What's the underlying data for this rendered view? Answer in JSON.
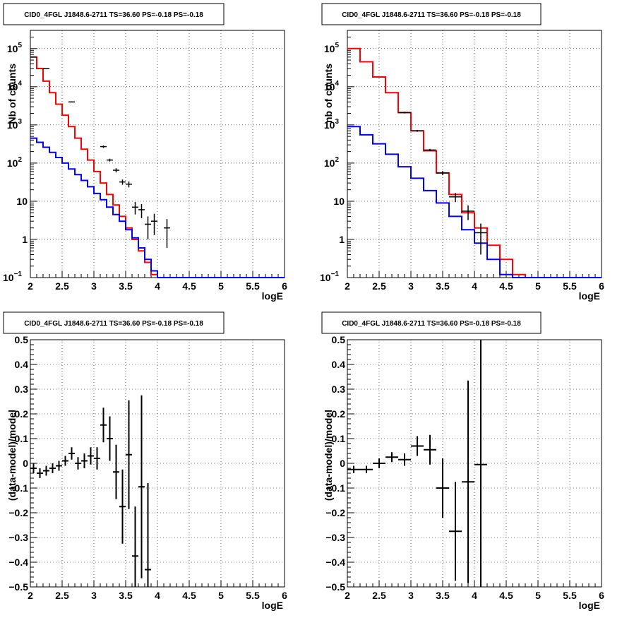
{
  "chart_data": [
    {
      "type": "histogram",
      "title": "CID0_4FGL J1848.6-2711 TS=36.60 PS=-0.18 PS=-0.18",
      "xlabel": "logE",
      "ylabel": "Nb of counts",
      "xlim": [
        2,
        6
      ],
      "ylim": [
        0.1,
        300000
      ],
      "yscale": "log",
      "grid": true,
      "x_ticks": [
        "2",
        "2.5",
        "3",
        "3.5",
        "4",
        "4.5",
        "5",
        "5.5",
        "6"
      ],
      "y_ticks": [
        {
          "value": 0.1,
          "mantissa": "10",
          "exp": "−1"
        },
        {
          "value": 1,
          "mantissa": "1",
          "exp": ""
        },
        {
          "value": 10,
          "mantissa": "10",
          "exp": ""
        },
        {
          "value": 100,
          "mantissa": "10",
          "exp": "2"
        },
        {
          "value": 1000,
          "mantissa": "10",
          "exp": "3"
        },
        {
          "value": 10000,
          "mantissa": "10",
          "exp": "4"
        },
        {
          "value": 100000,
          "mantissa": "10",
          "exp": "5"
        }
      ],
      "bin_width": 0.1,
      "series": [
        {
          "kind": "step",
          "color": "#ff0000",
          "edges_start": 2.0,
          "values": [
            60000,
            30000,
            14000,
            7000,
            3500,
            1800,
            900,
            450,
            230,
            120,
            60,
            30,
            15,
            8,
            4,
            2,
            1,
            0.5,
            0.25,
            0.12,
            0.1,
            0.1,
            0.1,
            0.1,
            0.1,
            0.1,
            0.1,
            0.1,
            0.1,
            0.1,
            0.1,
            0.1,
            0.1,
            0.1,
            0.1,
            0.1,
            0.1,
            0.1,
            0.1,
            0.1
          ]
        },
        {
          "kind": "step",
          "color": "#0000ff",
          "edges_start": 2.0,
          "values": [
            450,
            350,
            260,
            190,
            140,
            100,
            70,
            50,
            35,
            24,
            16,
            11,
            7,
            4.5,
            3,
            1.8,
            1.1,
            0.6,
            0.3,
            0.15,
            0.1,
            0.1,
            0.1,
            0.1,
            0.1,
            0.1,
            0.1,
            0.1,
            0.1,
            0.1,
            0.1,
            0.1,
            0.1,
            0.1,
            0.1,
            0.1,
            0.1,
            0.1,
            0.1,
            0.1
          ]
        },
        {
          "kind": "points",
          "color": "#000000",
          "points": [
            {
              "x": 2.05,
              "y": 60000,
              "lo": 59000,
              "hi": 61000
            },
            {
              "x": 2.25,
              "y": 30000,
              "lo": 29500,
              "hi": 30500
            },
            {
              "x": 2.65,
              "y": 4000,
              "lo": 3900,
              "hi": 4100
            },
            {
              "x": 3.15,
              "y": 270,
              "lo": 250,
              "hi": 290
            },
            {
              "x": 3.25,
              "y": 120,
              "lo": 110,
              "hi": 130
            },
            {
              "x": 3.35,
              "y": 65,
              "lo": 57,
              "hi": 73
            },
            {
              "x": 3.45,
              "y": 32,
              "lo": 27,
              "hi": 37
            },
            {
              "x": 3.55,
              "y": 28,
              "lo": 23,
              "hi": 33
            },
            {
              "x": 3.65,
              "y": 7,
              "lo": 4.5,
              "hi": 9.5
            },
            {
              "x": 3.75,
              "y": 6,
              "lo": 3.6,
              "hi": 8.4
            },
            {
              "x": 3.85,
              "y": 2.5,
              "lo": 1,
              "hi": 4
            },
            {
              "x": 3.95,
              "y": 3,
              "lo": 1.3,
              "hi": 4.7
            },
            {
              "x": 4.15,
              "y": 2,
              "lo": 0.6,
              "hi": 3.4
            }
          ]
        }
      ]
    },
    {
      "type": "histogram",
      "title": "CID0_4FGL J1848.6-2711 TS=36.60 PS=-0.18 PS=-0.18",
      "xlabel": "logE",
      "ylabel": "nb of counts",
      "xlim": [
        2,
        6
      ],
      "ylim": [
        0.1,
        300000
      ],
      "yscale": "log",
      "grid": true,
      "x_ticks": [
        "2",
        "2.5",
        "3",
        "3.5",
        "4",
        "4.5",
        "5",
        "5.5",
        "6"
      ],
      "y_ticks": [
        {
          "value": 0.1,
          "mantissa": "10",
          "exp": "−1"
        },
        {
          "value": 1,
          "mantissa": "1",
          "exp": ""
        },
        {
          "value": 10,
          "mantissa": "10",
          "exp": ""
        },
        {
          "value": 100,
          "mantissa": "10",
          "exp": "2"
        },
        {
          "value": 1000,
          "mantissa": "10",
          "exp": "3"
        },
        {
          "value": 10000,
          "mantissa": "10",
          "exp": "4"
        },
        {
          "value": 100000,
          "mantissa": "10",
          "exp": "5"
        }
      ],
      "bin_width": 0.2,
      "series": [
        {
          "kind": "step",
          "color": "#ff0000",
          "edges_start": 2.0,
          "values": [
            100000,
            45000,
            18000,
            7000,
            2100,
            700,
            210,
            55,
            15,
            5,
            2,
            0.7,
            0.3,
            0.12,
            0.1,
            0.1,
            0.1,
            0.1,
            0.1,
            0.1
          ]
        },
        {
          "kind": "step",
          "color": "#0000ff",
          "edges_start": 2.0,
          "values": [
            900,
            550,
            320,
            170,
            80,
            40,
            19,
            9,
            4,
            1.8,
            0.8,
            0.3,
            0.12,
            0.1,
            0.1,
            0.1,
            0.1,
            0.1,
            0.1,
            0.1
          ]
        },
        {
          "kind": "points",
          "color": "#000000",
          "points": [
            {
              "x": 2.9,
              "y": 2100,
              "lo": 2000,
              "hi": 2200
            },
            {
              "x": 3.1,
              "y": 700,
              "lo": 660,
              "hi": 740
            },
            {
              "x": 3.3,
              "y": 220,
              "lo": 205,
              "hi": 235
            },
            {
              "x": 3.5,
              "y": 55,
              "lo": 48,
              "hi": 62
            },
            {
              "x": 3.7,
              "y": 13,
              "lo": 9.5,
              "hi": 16.5
            },
            {
              "x": 3.9,
              "y": 5.5,
              "lo": 3.2,
              "hi": 7.8
            },
            {
              "x": 4.1,
              "y": 1.5,
              "lo": 0.4,
              "hi": 2.6
            }
          ]
        }
      ]
    },
    {
      "type": "scatter",
      "title": "CID0_4FGL J1848.6-2711 TS=36.60 PS=-0.18 PS=-0.18",
      "xlabel": "logE",
      "ylabel": "(data-model)/model",
      "xlim": [
        2,
        6
      ],
      "ylim": [
        -0.5,
        0.5
      ],
      "grid": true,
      "x_ticks": [
        "2",
        "2.5",
        "3",
        "3.5",
        "4",
        "4.5",
        "5",
        "5.5",
        "6"
      ],
      "y_ticks": [
        "−0.5",
        "−0.4",
        "−0.3",
        "−0.2",
        "−0.1",
        "0",
        "0.1",
        "0.2",
        "0.3",
        "0.4",
        "0.5"
      ],
      "half_width": 0.05,
      "points": [
        {
          "x": 2.05,
          "y": -0.02,
          "err": 0.02
        },
        {
          "x": 2.15,
          "y": -0.04,
          "err": 0.02
        },
        {
          "x": 2.25,
          "y": -0.03,
          "err": 0.02
        },
        {
          "x": 2.35,
          "y": -0.02,
          "err": 0.02
        },
        {
          "x": 2.45,
          "y": -0.01,
          "err": 0.02
        },
        {
          "x": 2.55,
          "y": 0.01,
          "err": 0.02
        },
        {
          "x": 2.65,
          "y": 0.04,
          "err": 0.025
        },
        {
          "x": 2.75,
          "y": 0.0,
          "err": 0.025
        },
        {
          "x": 2.85,
          "y": 0.01,
          "err": 0.03
        },
        {
          "x": 2.95,
          "y": 0.03,
          "err": 0.035
        },
        {
          "x": 3.05,
          "y": 0.02,
          "err": 0.045
        },
        {
          "x": 3.15,
          "y": 0.155,
          "err": 0.07
        },
        {
          "x": 3.25,
          "y": 0.1,
          "err": 0.09
        },
        {
          "x": 3.35,
          "y": -0.035,
          "err": 0.11
        },
        {
          "x": 3.45,
          "y": -0.175,
          "err": 0.15
        },
        {
          "x": 3.55,
          "y": 0.035,
          "err": 0.22
        },
        {
          "x": 3.65,
          "y": -0.375,
          "err": 0.2
        },
        {
          "x": 3.75,
          "y": -0.095,
          "err": 0.37
        },
        {
          "x": 3.85,
          "y": -0.43,
          "err": 0.35
        }
      ]
    },
    {
      "type": "scatter",
      "title": "CID0_4FGL J1848.6-2711 TS=36.60 PS=-0.18 PS=-0.18",
      "xlabel": "logE",
      "ylabel": "(data-model)/model",
      "xlim": [
        2,
        6
      ],
      "ylim": [
        -0.5,
        0.5
      ],
      "grid": true,
      "x_ticks": [
        "2",
        "2.5",
        "3",
        "3.5",
        "4",
        "4.5",
        "5",
        "5.5",
        "6"
      ],
      "y_ticks": [
        "−0.5",
        "−0.4",
        "−0.3",
        "−0.2",
        "−0.1",
        "0",
        "0.1",
        "0.2",
        "0.3",
        "0.4",
        "0.5"
      ],
      "half_width": 0.1,
      "points": [
        {
          "x": 2.1,
          "y": -0.025,
          "err": 0.015
        },
        {
          "x": 2.3,
          "y": -0.025,
          "err": 0.015
        },
        {
          "x": 2.5,
          "y": 0.0,
          "err": 0.02
        },
        {
          "x": 2.7,
          "y": 0.025,
          "err": 0.02
        },
        {
          "x": 2.9,
          "y": 0.015,
          "err": 0.025
        },
        {
          "x": 3.1,
          "y": 0.07,
          "err": 0.04
        },
        {
          "x": 3.3,
          "y": 0.055,
          "err": 0.06
        },
        {
          "x": 3.5,
          "y": -0.1,
          "err": 0.12
        },
        {
          "x": 3.7,
          "y": -0.275,
          "err": 0.2
        },
        {
          "x": 3.9,
          "y": -0.075,
          "err": 0.41
        },
        {
          "x": 4.1,
          "y": -0.005,
          "err": 0.55
        }
      ]
    }
  ]
}
